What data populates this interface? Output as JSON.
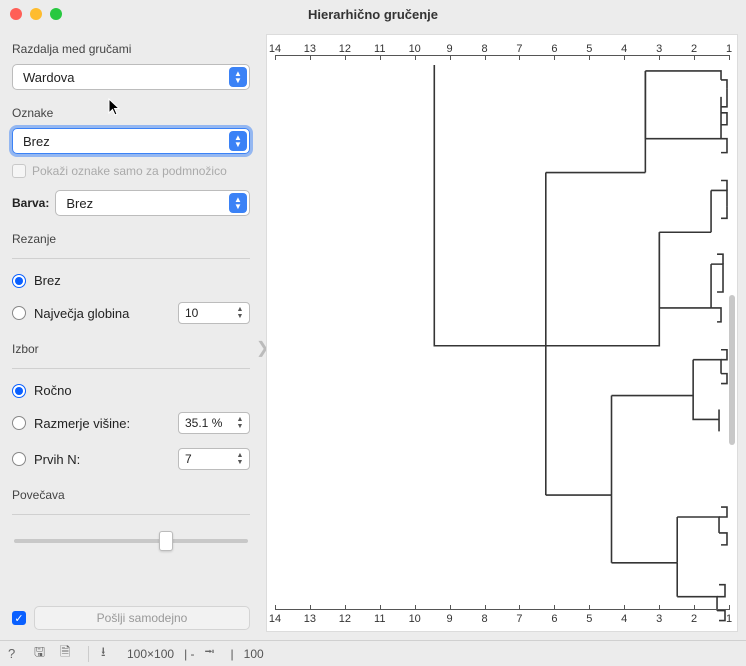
{
  "window": {
    "title": "Hierarhično gručenje"
  },
  "sidebar": {
    "linkage_label": "Razdalja med gručami",
    "linkage_value": "Wardova",
    "annotations_label": "Oznake",
    "annotations_value": "Brez",
    "subset_label": "Pokaži oznake samo za podmnožico",
    "color_label": "Barva:",
    "color_value": "Brez",
    "pruning_label": "Rezanje",
    "pruning_none": "Brez",
    "pruning_maxdepth": "Največja globina",
    "pruning_maxdepth_value": "10",
    "selection_label": "Izbor",
    "sel_manual": "Ročno",
    "sel_ratio": "Razmerje višine:",
    "sel_ratio_value": "35.1 %",
    "sel_topn": "Prvih N:",
    "sel_topn_value": "7",
    "zoom_label": "Povečava",
    "send_label": "Pošlji samodejno"
  },
  "axis": {
    "ticks": [
      14,
      13,
      12,
      11,
      10,
      9,
      8,
      7,
      6,
      5,
      4,
      3,
      2,
      1
    ]
  },
  "status": {
    "in": "100×100",
    "mid": "-",
    "out": "100"
  },
  "colors": {
    "accent": "#0a60ff",
    "axis": "#555555",
    "line": "#353535"
  },
  "dendrogram": {
    "type": "tree",
    "stroke": "#353535",
    "stroke_width": 1.6,
    "background": "#ffffff",
    "paths": [
      "M 160 0 L 160 282 L 272 282",
      "M 272 108 L 272 282",
      "M 272 108 L 372 108",
      "M 372 6 L 372 108",
      "M 372 6 L 448 6 L 448 15",
      "M 372 74 L 448 74",
      "M 372 6 L 372 74",
      "M 448 32 L 448 74",
      "M 386 168 L 386 282 L 272 282",
      "M 386 168 L 438 168",
      "M 386 244 L 438 244",
      "M 386 168 L 386 244",
      "M 438 126 L 438 168",
      "M 438 126 L 454 126 L 454 142",
      "M 438 200 L 438 244",
      "M 438 200 L 450 200 L 450 214",
      "M 272 282 L 272 432",
      "M 272 432 L 338 432",
      "M 338 332 L 338 432",
      "M 338 332 L 420 332",
      "M 420 296 L 420 332",
      "M 420 296 L 448 296 L 448 310",
      "M 338 500 L 338 432",
      "M 338 500 L 404 500",
      "M 404 454 L 404 500",
      "M 404 454 L 446 454 L 446 470",
      "M 404 534 L 404 500",
      "M 404 534 L 444 534 L 444 548",
      "M 448 15 L 454 15 L 454 24",
      "M 454 24 L 454 42 L 448 42",
      "M 448 48 L 454 48 L 454 60 L 448 60",
      "M 448 74 L 454 74 L 454 88 L 448 88",
      "M 454 126 L 454 116 L 448 116",
      "M 454 142 L 454 154 L 448 154",
      "M 450 200 L 450 190 L 444 190",
      "M 450 214 L 450 228 L 444 228",
      "M 438 244 L 448 244 L 448 258 L 444 258",
      "M 448 296 L 454 296 L 454 286 L 448 286",
      "M 448 310 L 454 310 L 454 320 L 448 320",
      "M 420 332 L 420 356 L 446 356",
      "M 446 346 L 446 356 L 446 368",
      "M 446 454 L 454 454 L 454 444 L 448 444",
      "M 446 470 L 454 470 L 454 482 L 448 482",
      "M 444 534 L 452 534 L 452 522 L 446 522",
      "M 444 548 L 452 548 L 452 558 L 446 558"
    ]
  }
}
